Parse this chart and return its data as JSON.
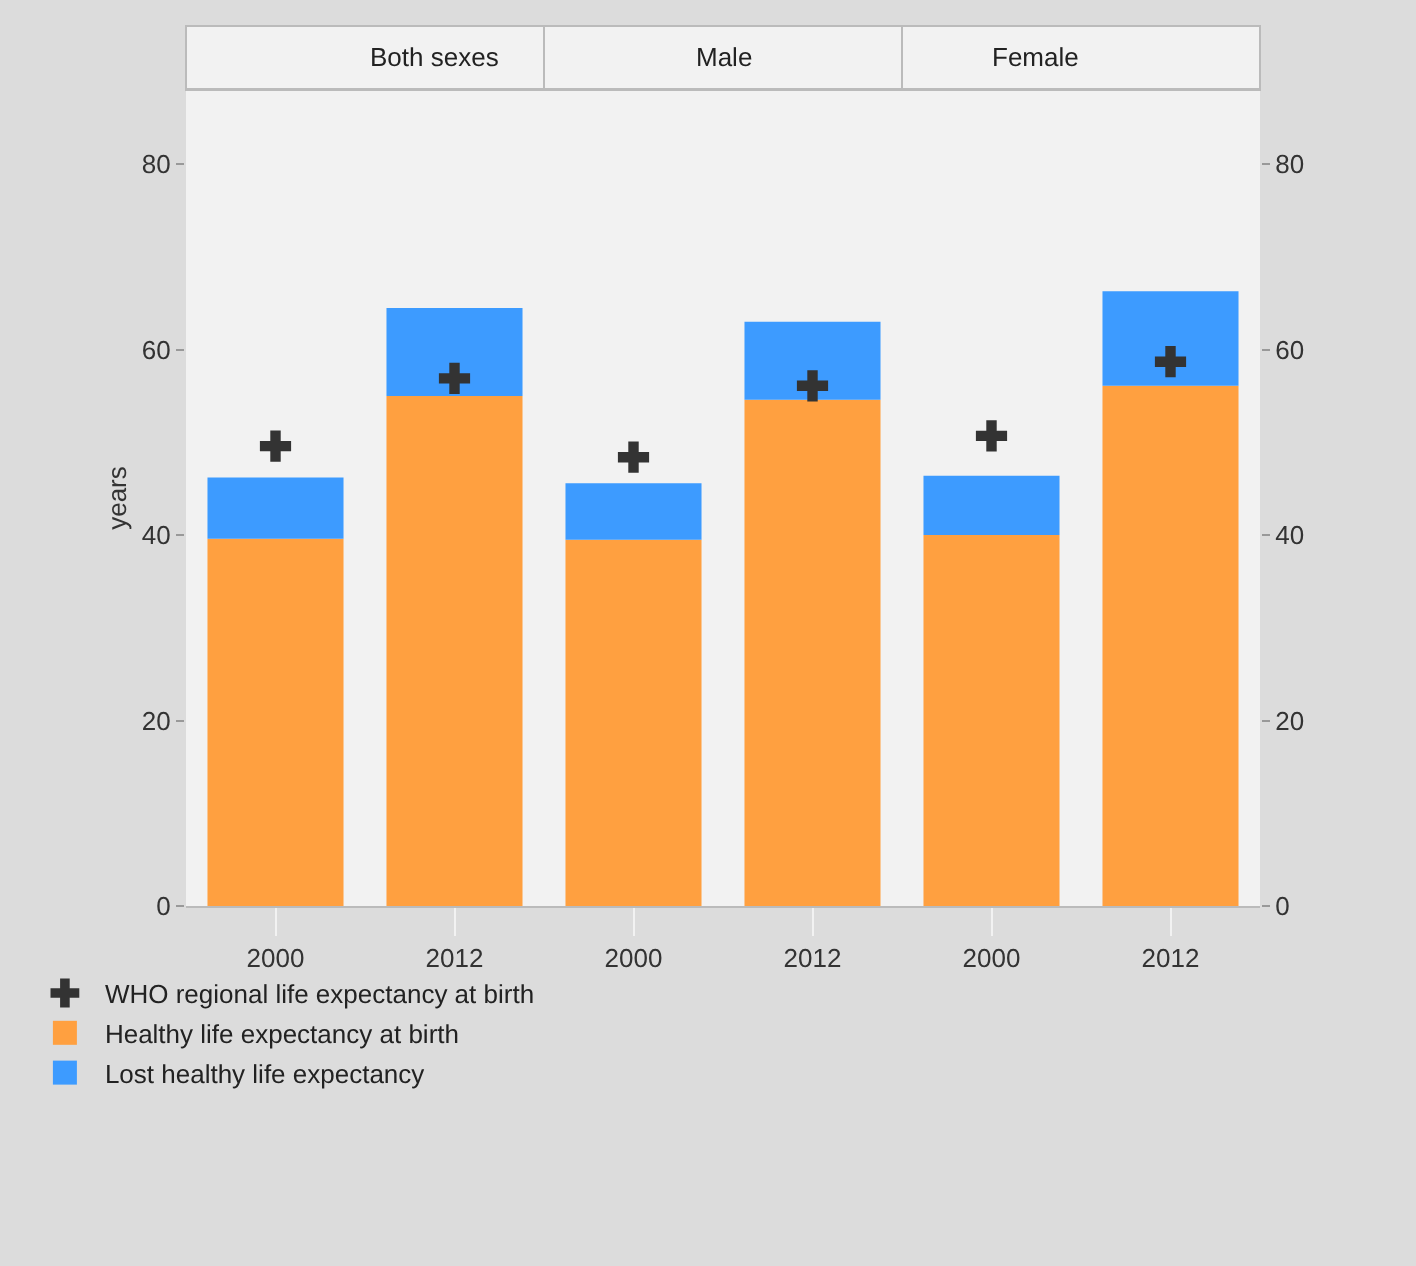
{
  "chart_data": [
    {
      "type": "bar",
      "stacked": true,
      "title": "Both sexes",
      "ylabel": "years",
      "categories": [
        "2000",
        "2012"
      ],
      "ylim": [
        0,
        88
      ],
      "yticks": [
        0,
        20,
        40,
        60,
        80
      ],
      "legend": "bottom",
      "series": [
        {
          "name": "WHO regional life expectancy at birth",
          "type": "scatter",
          "marker": "cross",
          "color": "#333333",
          "values": [
            49.6,
            56.9
          ]
        },
        {
          "name": "Healthy life expectancy at birth",
          "color": "#ffa040",
          "values": [
            39.6,
            55.0
          ]
        },
        {
          "name": "Lost healthy life expectancy",
          "color": "#3d9bff",
          "values": [
            6.6,
            9.5
          ]
        }
      ]
    },
    {
      "type": "bar",
      "stacked": true,
      "title": "Male",
      "categories": [
        "2000",
        "2012"
      ],
      "ylim": [
        0,
        88
      ],
      "yticks": [
        0,
        20,
        40,
        60,
        80
      ],
      "tick_labels": "x",
      "series": [
        {
          "type": "scatter",
          "marker": "cross",
          "color": "#333333",
          "values": [
            48.4,
            56.1
          ]
        },
        {
          "color": "#ffa040",
          "values": [
            39.5,
            54.6
          ]
        },
        {
          "color": "#3d9bff",
          "values": [
            6.1,
            8.4
          ]
        }
      ]
    },
    {
      "type": "bar",
      "stacked": true,
      "title": "Female",
      "categories": [
        "2000",
        "2012"
      ],
      "y2lim": [
        0,
        88
      ],
      "y2ticks": [
        0,
        20,
        40,
        60,
        80
      ],
      "series": [
        {
          "type": "scatter",
          "marker": "cross",
          "color": "#333333",
          "axis": "y2",
          "values": [
            50.7,
            58.7
          ]
        },
        {
          "color": "#ffa040",
          "axis": "y2",
          "values": [
            40.0,
            56.1
          ]
        },
        {
          "color": "#3d9bff",
          "axis": "y2",
          "values": [
            6.4,
            10.2
          ]
        }
      ]
    }
  ]
}
